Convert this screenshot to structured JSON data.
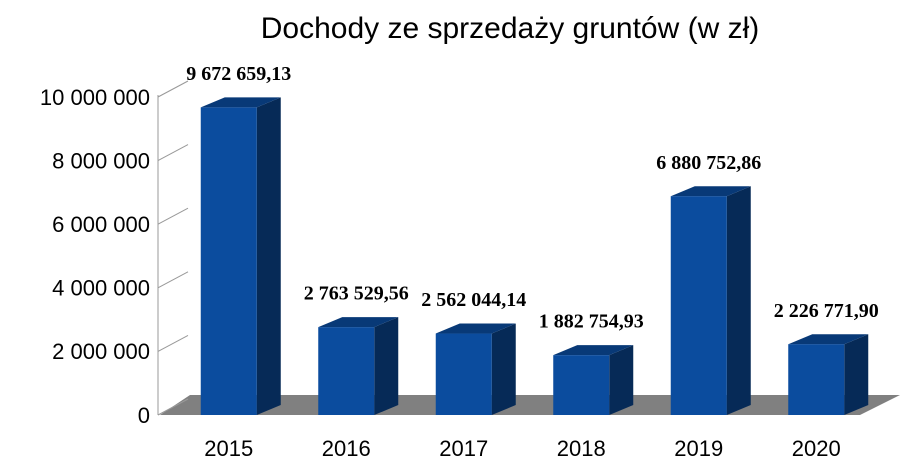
{
  "chart_data": {
    "type": "bar3d",
    "title": "Dochody ze  sprzedaży gruntów (w zł)",
    "categories": [
      "2015",
      "2016",
      "2017",
      "2018",
      "2019",
      "2020"
    ],
    "values": [
      9672659.13,
      2763529.56,
      2562044.14,
      1882754.93,
      6880752.86,
      2226771.9
    ],
    "value_labels": [
      "9 672 659,13",
      "2 763 529,56",
      "2 562 044,14",
      "1 882 754,93",
      "6 880 752,86",
      "2 226 771,90"
    ],
    "color": "#0b4c9e",
    "ylim": [
      0,
      10000000
    ],
    "yticks": [
      0,
      {
        "value": 2000000,
        "label": "2 000 000"
      },
      {
        "value": 4000000,
        "label": "4 000 000"
      },
      {
        "value": 6000000,
        "label": "6 000 000"
      },
      {
        "value": 8000000,
        "label": "8 000 000"
      },
      {
        "value": 10000000,
        "label": "10 000 000"
      }
    ],
    "grid": true
  }
}
